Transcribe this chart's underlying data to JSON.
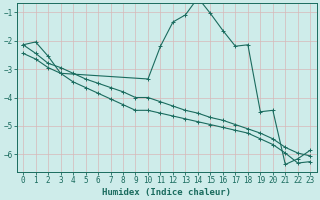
{
  "xlabel": "Humidex (Indice chaleur)",
  "bg_color": "#ceecea",
  "grid_color": "#b8dbd9",
  "line_color": "#1a6b5e",
  "xlim": [
    -0.5,
    23.5
  ],
  "ylim": [
    -6.6,
    -0.7
  ],
  "xticks": [
    0,
    1,
    2,
    3,
    4,
    5,
    6,
    7,
    8,
    9,
    10,
    11,
    12,
    13,
    14,
    15,
    16,
    17,
    18,
    19,
    20,
    21,
    22,
    23
  ],
  "yticks": [
    -6,
    -5,
    -4,
    -3,
    -2,
    -1
  ],
  "curve1_x": [
    0,
    1,
    2,
    3,
    10,
    11,
    12,
    13,
    14,
    15,
    16,
    17,
    18,
    19,
    20,
    21,
    22,
    23
  ],
  "curve1_y": [
    -2.15,
    -2.05,
    -2.55,
    -3.15,
    -3.35,
    -2.2,
    -1.35,
    -1.1,
    -0.5,
    -1.05,
    -1.65,
    -2.2,
    -2.15,
    -4.5,
    -4.45,
    -6.35,
    -6.15,
    -5.85
  ],
  "curve2_x": [
    0,
    1,
    2,
    3,
    4,
    5,
    6,
    7,
    8,
    9,
    10,
    11,
    12,
    13,
    14,
    15,
    16,
    17,
    18,
    19,
    20,
    21,
    22,
    23
  ],
  "curve2_y": [
    -2.15,
    -2.45,
    -2.8,
    -2.95,
    -3.15,
    -3.35,
    -3.5,
    -3.65,
    -3.8,
    -4.0,
    -4.0,
    -4.15,
    -4.3,
    -4.45,
    -4.55,
    -4.7,
    -4.8,
    -4.95,
    -5.1,
    -5.25,
    -5.45,
    -5.75,
    -5.95,
    -6.05
  ],
  "curve3_x": [
    0,
    1,
    2,
    3,
    4,
    5,
    6,
    7,
    8,
    9,
    10,
    11,
    12,
    13,
    14,
    15,
    16,
    17,
    18,
    19,
    20,
    21,
    22,
    23
  ],
  "curve3_y": [
    -2.45,
    -2.65,
    -2.95,
    -3.15,
    -3.45,
    -3.65,
    -3.85,
    -4.05,
    -4.25,
    -4.45,
    -4.45,
    -4.55,
    -4.65,
    -4.75,
    -4.85,
    -4.95,
    -5.05,
    -5.15,
    -5.25,
    -5.45,
    -5.65,
    -5.95,
    -6.3,
    -6.25
  ]
}
